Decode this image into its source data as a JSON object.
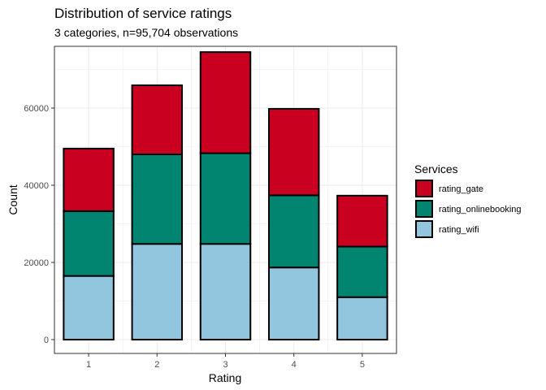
{
  "chart_data": {
    "type": "bar",
    "stacked": true,
    "title": "Distribution of service ratings",
    "subtitle": "3 categories, n=95,704 observations",
    "xlabel": "Rating",
    "ylabel": "Count",
    "categories": [
      "1",
      "2",
      "3",
      "4",
      "5"
    ],
    "ylim": [
      0,
      76000
    ],
    "yticks": [
      0,
      20000,
      40000,
      60000
    ],
    "ytick_labels": [
      "0",
      "20000",
      "40000",
      "60000"
    ],
    "grid": true,
    "legend": {
      "title": "Services",
      "position": "right"
    },
    "series": [
      {
        "name": "rating_wifi",
        "color": "#92C5DE",
        "values": [
          16500,
          24800,
          24800,
          18700,
          11000
        ]
      },
      {
        "name": "rating_onlinebooking",
        "color": "#018571",
        "values": [
          16800,
          23200,
          23500,
          18700,
          13100
        ]
      },
      {
        "name": "rating_gate",
        "color": "#CA0020",
        "values": [
          16200,
          17900,
          26200,
          22400,
          13200
        ]
      }
    ],
    "legend_order": [
      "rating_gate",
      "rating_onlinebooking",
      "rating_wifi"
    ]
  }
}
